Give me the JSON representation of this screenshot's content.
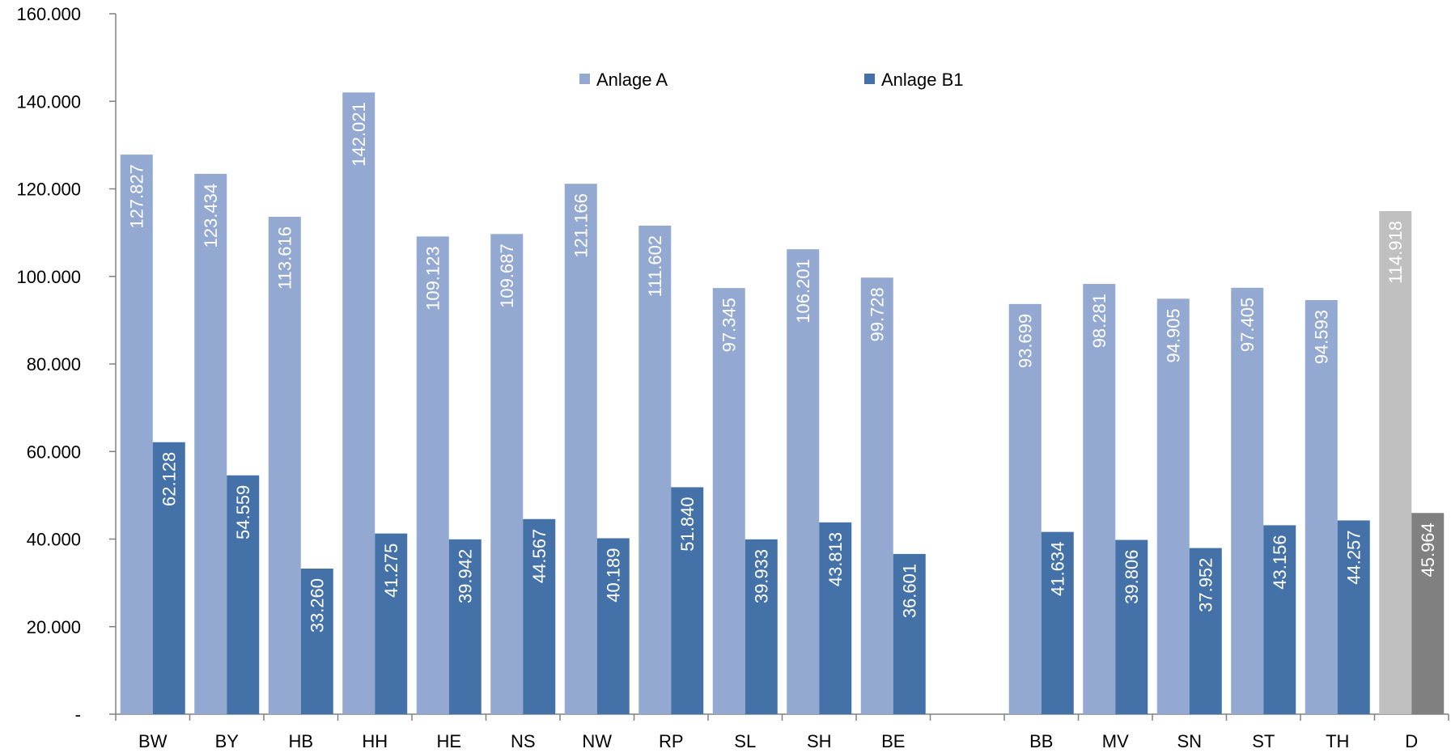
{
  "chart_data": {
    "type": "bar",
    "categories": [
      "BW",
      "BY",
      "HB",
      "HH",
      "HE",
      "NS",
      "NW",
      "RP",
      "SL",
      "SH",
      "BE",
      "",
      "BB",
      "MV",
      "SN",
      "ST",
      "TH",
      "D"
    ],
    "series": [
      {
        "name": "Anlage A",
        "color": "#94a9d2",
        "values": [
          127827,
          123434,
          113616,
          142021,
          109123,
          109687,
          121166,
          111602,
          97345,
          106201,
          99728,
          null,
          93699,
          98281,
          94905,
          97405,
          94593,
          114918
        ],
        "labels": [
          "127.827",
          "123.434",
          "113.616",
          "142.021",
          "109.123",
          "109.687",
          "121.166",
          "111.602",
          "97.345",
          "106.201",
          "99.728",
          "",
          "93.699",
          "98.281",
          "94.905",
          "97.405",
          "94.593",
          "114.918"
        ]
      },
      {
        "name": "Anlage B1",
        "color": "#4472a8",
        "values": [
          62128,
          54559,
          33260,
          41275,
          39942,
          44567,
          40189,
          51840,
          39933,
          43813,
          36601,
          null,
          41634,
          39806,
          37952,
          43156,
          44257,
          45964
        ],
        "labels": [
          "62.128",
          "54.559",
          "33.260",
          "41.275",
          "39.942",
          "44.567",
          "40.189",
          "51.840",
          "39.933",
          "43.813",
          "36.601",
          "",
          "41.634",
          "39.806",
          "37.952",
          "43.156",
          "44.257",
          "45.964"
        ]
      }
    ],
    "highlight": {
      "category": "D",
      "colors": [
        "#c0c0c0",
        "#808080"
      ]
    },
    "ylim": [
      0,
      160000
    ],
    "yticks": [
      0,
      20000,
      40000,
      60000,
      80000,
      100000,
      120000,
      140000,
      160000
    ],
    "ytick_labels": [
      "-",
      "20.000",
      "40.000",
      "60.000",
      "80.000",
      "100.000",
      "120.000",
      "140.000",
      "160.000"
    ],
    "legend_position": "top",
    "grid": false,
    "title": "",
    "xlabel": "",
    "ylabel": ""
  }
}
